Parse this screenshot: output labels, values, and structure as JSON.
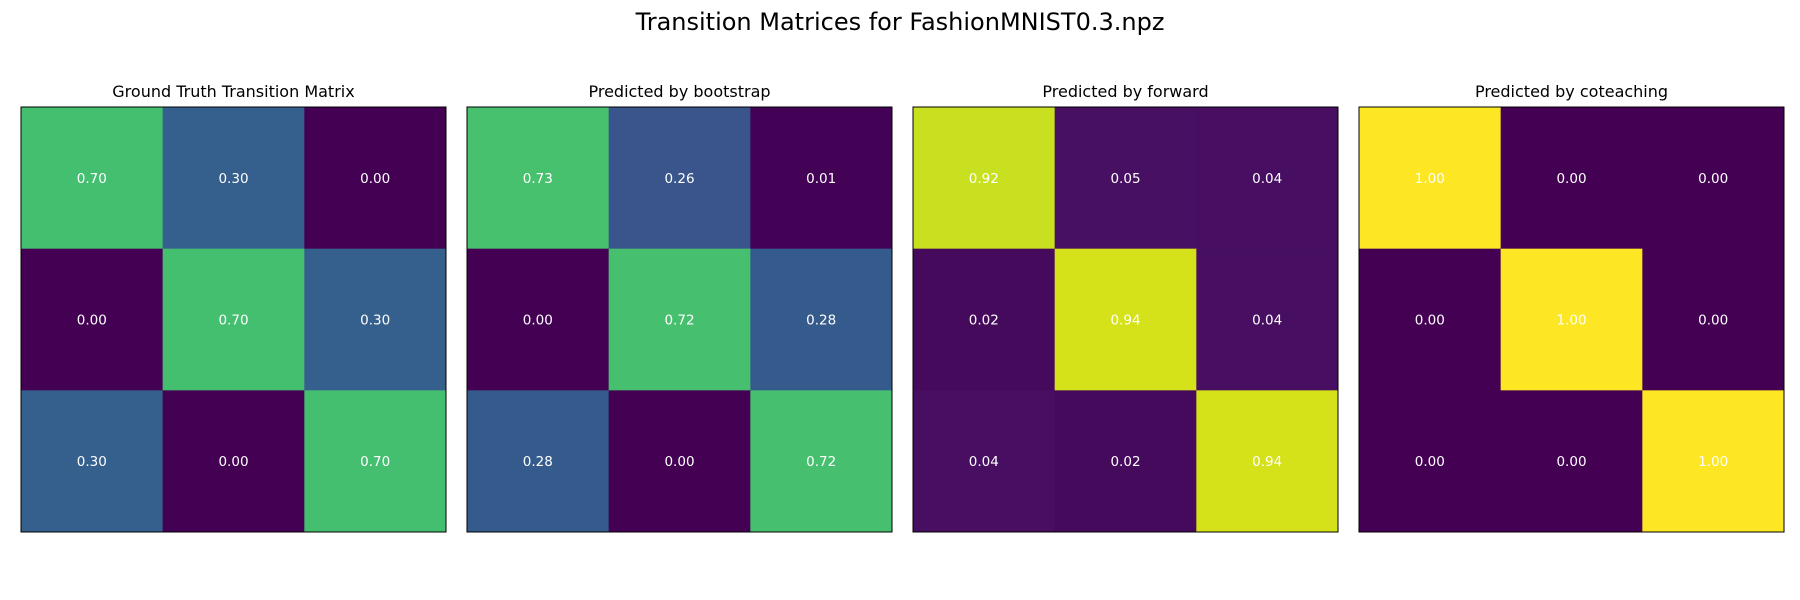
{
  "figure": {
    "title": "Transition Matrices for FashionMNIST0.3.npz"
  },
  "chart_data": [
    {
      "type": "heatmap",
      "title": "Ground Truth Transition Matrix",
      "values": [
        [
          0.7,
          0.3,
          0.0
        ],
        [
          0.0,
          0.7,
          0.3
        ],
        [
          0.3,
          0.0,
          0.7
        ]
      ],
      "labels": [
        [
          "0.70",
          "0.30",
          "0.00"
        ],
        [
          "0.00",
          "0.70",
          "0.30"
        ],
        [
          "0.30",
          "0.00",
          "0.70"
        ]
      ],
      "colors": [
        [
          "#44bf70",
          "#355f8d",
          "#440154"
        ],
        [
          "#440154",
          "#44bf70",
          "#355f8d"
        ],
        [
          "#355f8d",
          "#440154",
          "#44bf70"
        ]
      ],
      "colormap": "viridis",
      "grid": false
    },
    {
      "type": "heatmap",
      "title": "Predicted by bootstrap",
      "values": [
        [
          0.73,
          0.26,
          0.01
        ],
        [
          0.0,
          0.72,
          0.28
        ],
        [
          0.28,
          0.0,
          0.72
        ]
      ],
      "labels": [
        [
          "0.73",
          "0.26",
          "0.01"
        ],
        [
          "0.00",
          "0.72",
          "0.28"
        ],
        [
          "0.28",
          "0.00",
          "0.72"
        ]
      ],
      "colors": [
        [
          "#48c16e",
          "#39558c",
          "#440256"
        ],
        [
          "#440154",
          "#46c06f",
          "#355a8c"
        ],
        [
          "#355a8c",
          "#440154",
          "#46c06f"
        ]
      ],
      "colormap": "viridis",
      "grid": false
    },
    {
      "type": "heatmap",
      "title": "Predicted by forward",
      "values": [
        [
          0.92,
          0.05,
          0.04
        ],
        [
          0.02,
          0.94,
          0.04
        ],
        [
          0.04,
          0.02,
          0.94
        ]
      ],
      "labels": [
        [
          "0.92",
          "0.05",
          "0.04"
        ],
        [
          "0.02",
          "0.94",
          "0.04"
        ],
        [
          "0.04",
          "0.02",
          "0.94"
        ]
      ],
      "colors": [
        [
          "#c8e020",
          "#471063",
          "#470e61"
        ],
        [
          "#460a5d",
          "#d5e21a",
          "#470e61"
        ],
        [
          "#470e61",
          "#460a5d",
          "#d5e21a"
        ]
      ],
      "colormap": "viridis",
      "grid": false
    },
    {
      "type": "heatmap",
      "title": "Predicted by coteaching",
      "values": [
        [
          1.0,
          0.0,
          0.0
        ],
        [
          0.0,
          1.0,
          0.0
        ],
        [
          0.0,
          0.0,
          1.0
        ]
      ],
      "labels": [
        [
          "1.00",
          "0.00",
          "0.00"
        ],
        [
          "0.00",
          "1.00",
          "0.00"
        ],
        [
          "0.00",
          "0.00",
          "1.00"
        ]
      ],
      "colors": [
        [
          "#fde725",
          "#440154",
          "#440154"
        ],
        [
          "#440154",
          "#fde725",
          "#440154"
        ],
        [
          "#440154",
          "#440154",
          "#fde725"
        ]
      ],
      "colormap": "viridis",
      "grid": false
    }
  ]
}
